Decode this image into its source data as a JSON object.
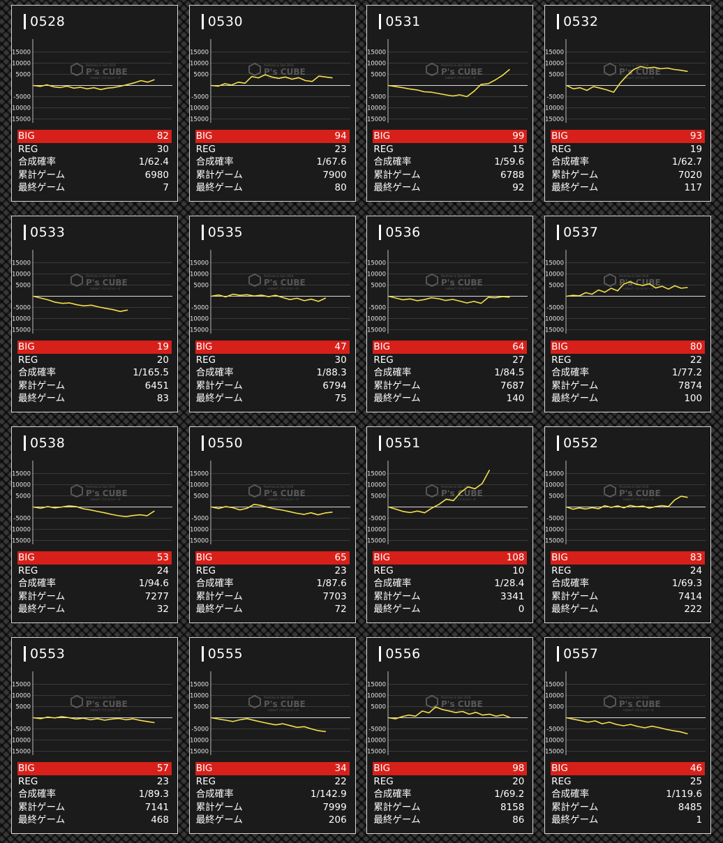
{
  "labels": {
    "big": "BIG",
    "reg": "REG",
    "rate": "合成確率",
    "total": "累計ゲーム",
    "last": "最終ゲーム"
  },
  "watermark": {
    "brand": "P's CUBE",
    "sub_top": "Pachinko & Slot 2018",
    "sub_bottom": "nobox7 パチスロデータ"
  },
  "colors": {
    "line": "#f5e04a",
    "big_bar": "#d8201a",
    "card_bg": "#1b1b1b"
  },
  "graph_axis": {
    "ticks": [
      15000,
      10000,
      5000,
      -5000,
      -10000,
      -15000
    ],
    "ylim": [
      -20000,
      20000
    ]
  },
  "machines": [
    {
      "id": "0528",
      "big": "82",
      "reg": "30",
      "rate": "1/62.4",
      "total": "6980",
      "last": "7",
      "chart_data": {
        "type": "line",
        "values": [
          0,
          -400,
          300,
          -600,
          -900,
          -300,
          -1200,
          -800,
          -1500,
          -1000,
          -1800,
          -1200,
          -900,
          -300,
          400,
          1200,
          2200,
          1500,
          2600
        ]
      }
    },
    {
      "id": "0530",
      "big": "94",
      "reg": "23",
      "rate": "1/67.6",
      "total": "7900",
      "last": "80",
      "chart_data": {
        "type": "line",
        "values": [
          0,
          -300,
          800,
          200,
          1500,
          1000,
          4000,
          3400,
          4800,
          3800,
          3200,
          3800,
          2800,
          3500,
          2200,
          1800,
          4200,
          3800,
          3400
        ]
      }
    },
    {
      "id": "0531",
      "big": "99",
      "reg": "15",
      "rate": "1/59.6",
      "total": "6788",
      "last": "92",
      "chart_data": {
        "type": "line",
        "values": [
          0,
          -500,
          -1000,
          -1600,
          -2000,
          -2800,
          -3000,
          -3600,
          -4200,
          -4700,
          -4200,
          -5000,
          -2600,
          500,
          800,
          2500,
          4500,
          7200
        ]
      }
    },
    {
      "id": "0532",
      "big": "93",
      "reg": "19",
      "rate": "1/62.7",
      "total": "7020",
      "last": "117",
      "chart_data": {
        "type": "line",
        "values": [
          0,
          -1500,
          -1000,
          -2200,
          -500,
          -1200,
          -2000,
          -3000,
          1200,
          4500,
          7200,
          8500,
          7800,
          8200,
          7500,
          7800,
          7200,
          6800,
          6300
        ]
      }
    },
    {
      "id": "0533",
      "big": "19",
      "reg": "20",
      "rate": "1/165.5",
      "total": "6451",
      "last": "83",
      "chart_data": {
        "type": "line",
        "values": [
          0,
          -800,
          -1600,
          -2700,
          -3200,
          -3000,
          -3800,
          -4300,
          -4000,
          -4800,
          -5400,
          -6000,
          -6800,
          -6200
        ]
      }
    },
    {
      "id": "0535",
      "big": "47",
      "reg": "30",
      "rate": "1/88.3",
      "total": "6794",
      "last": "75",
      "chart_data": {
        "type": "line",
        "values": [
          0,
          600,
          -300,
          900,
          400,
          700,
          100,
          500,
          -200,
          400,
          -600,
          -1500,
          -900,
          -2000,
          -1300,
          -2300,
          -800
        ]
      }
    },
    {
      "id": "0536",
      "big": "64",
      "reg": "27",
      "rate": "1/84.5",
      "total": "7687",
      "last": "140",
      "chart_data": {
        "type": "line",
        "values": [
          0,
          -800,
          -1600,
          -1200,
          -2000,
          -1500,
          -700,
          -1100,
          -1900,
          -1400,
          -2200,
          -3000,
          -2300,
          -3200,
          -500,
          -700,
          -200,
          -400
        ]
      }
    },
    {
      "id": "0537",
      "big": "80",
      "reg": "22",
      "rate": "1/77.2",
      "total": "7874",
      "last": "100",
      "chart_data": {
        "type": "line",
        "values": [
          0,
          400,
          200,
          1600,
          900,
          2800,
          1800,
          3600,
          2400,
          5500,
          6500,
          5300,
          4800,
          5600,
          3700,
          4500,
          3200,
          4700,
          3600,
          3900
        ]
      }
    },
    {
      "id": "0538",
      "big": "53",
      "reg": "24",
      "rate": "1/94.6",
      "total": "7277",
      "last": "32",
      "chart_data": {
        "type": "line",
        "values": [
          0,
          -600,
          200,
          -400,
          0,
          500,
          200,
          -800,
          -1300,
          -2000,
          -2600,
          -3300,
          -3900,
          -4300,
          -3800,
          -3500,
          -3900,
          -1800
        ]
      }
    },
    {
      "id": "0550",
      "big": "65",
      "reg": "23",
      "rate": "1/87.6",
      "total": "7703",
      "last": "72",
      "chart_data": {
        "type": "line",
        "values": [
          0,
          -700,
          200,
          -300,
          -1300,
          -600,
          1200,
          700,
          -200,
          -900,
          -1400,
          -2100,
          -2800,
          -3300,
          -2600,
          -3500,
          -2700,
          -2300
        ]
      }
    },
    {
      "id": "0551",
      "big": "108",
      "reg": "10",
      "rate": "1/28.4",
      "total": "3341",
      "last": "0",
      "chart_data": {
        "type": "line",
        "values": [
          0,
          -1000,
          -2000,
          -2500,
          -1800,
          -2600,
          -500,
          1200,
          3500,
          2800,
          6500,
          9000,
          8200,
          10500,
          16500
        ]
      }
    },
    {
      "id": "0552",
      "big": "83",
      "reg": "24",
      "rate": "1/69.3",
      "total": "7414",
      "last": "222",
      "chart_data": {
        "type": "line",
        "values": [
          0,
          -1000,
          -400,
          -900,
          -300,
          -800,
          600,
          -200,
          500,
          -400,
          700,
          100,
          400,
          -500,
          200,
          600,
          200,
          3200,
          4800,
          4300
        ]
      }
    },
    {
      "id": "0553",
      "big": "57",
      "reg": "23",
      "rate": "1/89.3",
      "total": "7141",
      "last": "468",
      "chart_data": {
        "type": "line",
        "values": [
          0,
          -400,
          300,
          -100,
          500,
          0,
          -600,
          -200,
          -900,
          -400,
          -1100,
          -600,
          -300,
          -900,
          -500,
          -1200,
          -1700,
          -2200
        ]
      }
    },
    {
      "id": "0555",
      "big": "34",
      "reg": "22",
      "rate": "1/142.9",
      "total": "7999",
      "last": "206",
      "chart_data": {
        "type": "line",
        "values": [
          0,
          -600,
          -1100,
          -1700,
          -900,
          -400,
          -1200,
          -1900,
          -2600,
          -3200,
          -2700,
          -3500,
          -4300,
          -4000,
          -5000,
          -5800,
          -6200
        ]
      }
    },
    {
      "id": "0556",
      "big": "98",
      "reg": "20",
      "rate": "1/69.2",
      "total": "8158",
      "last": "86",
      "chart_data": {
        "type": "line",
        "values": [
          0,
          -500,
          500,
          1200,
          700,
          3000,
          2200,
          4800,
          3700,
          3000,
          2300,
          2800,
          1600,
          2400,
          1200,
          1600,
          700,
          1300,
          200
        ]
      }
    },
    {
      "id": "0557",
      "big": "46",
      "reg": "25",
      "rate": "1/119.6",
      "total": "8485",
      "last": "1",
      "chart_data": {
        "type": "line",
        "values": [
          0,
          -700,
          -1300,
          -2000,
          -1400,
          -2700,
          -2000,
          -3000,
          -3600,
          -3000,
          -3900,
          -4500,
          -3800,
          -4400,
          -5200,
          -5800,
          -6300,
          -7200
        ]
      }
    }
  ]
}
